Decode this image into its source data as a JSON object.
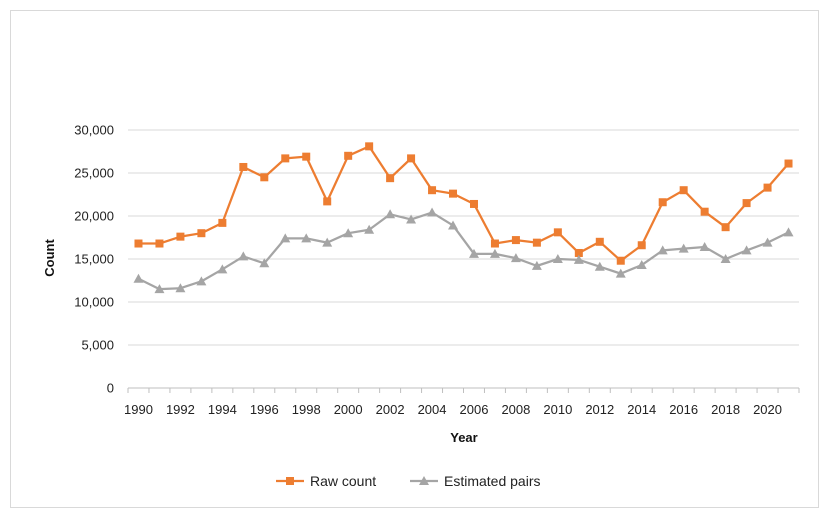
{
  "chart_data": {
    "type": "line",
    "title": "",
    "xlabel": "Year",
    "ylabel": "Count",
    "ylim": [
      0,
      30000
    ],
    "yticks": [
      0,
      5000,
      10000,
      15000,
      20000,
      25000,
      30000
    ],
    "ytick_labels": [
      "0",
      "5,000",
      "10,000",
      "15,000",
      "20,000",
      "25,000",
      "30,000"
    ],
    "x": [
      1990,
      1991,
      1992,
      1993,
      1994,
      1995,
      1996,
      1997,
      1998,
      1999,
      2000,
      2001,
      2002,
      2003,
      2004,
      2005,
      2006,
      2007,
      2008,
      2009,
      2010,
      2011,
      2012,
      2013,
      2014,
      2015,
      2016,
      2017,
      2018,
      2019,
      2020,
      2021
    ],
    "xtick_labels": [
      "1990",
      "1992",
      "1994",
      "1996",
      "1998",
      "2000",
      "2002",
      "2004",
      "2006",
      "2008",
      "2010",
      "2012",
      "2014",
      "2016",
      "2018",
      "2020"
    ],
    "grid": true,
    "legend_position": "bottom",
    "series": [
      {
        "name": "Raw count",
        "color": "#ED7D31",
        "marker": "square",
        "values": [
          16800,
          16800,
          17600,
          18000,
          19200,
          25700,
          24500,
          26700,
          26900,
          21700,
          27000,
          28100,
          24400,
          26700,
          23000,
          22600,
          21400,
          16800,
          17200,
          16900,
          18100,
          15700,
          17000,
          14800,
          16600,
          21600,
          23000,
          20500,
          18700,
          21500,
          23300,
          26100
        ]
      },
      {
        "name": "Estimated pairs",
        "color": "#A5A5A5",
        "marker": "triangle",
        "values": [
          12700,
          11500,
          11600,
          12400,
          13800,
          15300,
          14500,
          17400,
          17400,
          16900,
          18000,
          18400,
          20200,
          19600,
          20400,
          18900,
          15600,
          15600,
          15100,
          14200,
          15000,
          14900,
          14100,
          13300,
          14300,
          16000,
          16200,
          16400,
          15000,
          16000,
          16900,
          18100
        ]
      }
    ]
  }
}
